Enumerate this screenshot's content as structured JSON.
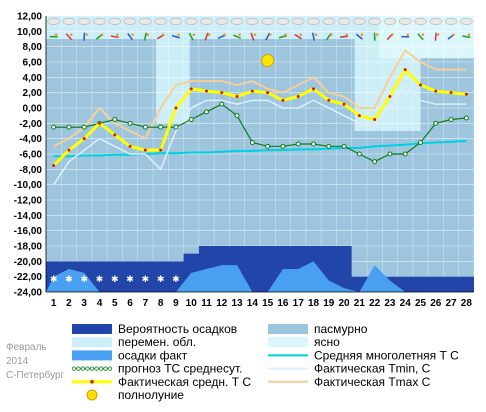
{
  "chart_data": {
    "type": "line",
    "x": [
      1,
      2,
      3,
      4,
      5,
      6,
      7,
      8,
      9,
      10,
      11,
      12,
      13,
      14,
      15,
      16,
      17,
      18,
      19,
      20,
      21,
      22,
      23,
      24,
      25,
      26,
      27,
      28
    ],
    "ylim": [
      -24,
      12
    ],
    "yticks": [
      "12,00",
      "10,00",
      "8,00",
      "6,00",
      "4,00",
      "2,00",
      "0,00",
      "-2,00",
      "-4,00",
      "-6,00",
      "-8,00",
      "-10,00",
      "-12,00",
      "-14,00",
      "-16,00",
      "-18,00",
      "-20,00",
      "-22,00",
      "-24,00"
    ],
    "ytick_values": [
      12,
      10,
      8,
      6,
      4,
      2,
      0,
      -2,
      -4,
      -6,
      -8,
      -10,
      -12,
      -14,
      -16,
      -18,
      -20,
      -22,
      -24
    ],
    "xticks": [
      "1",
      "2",
      "3",
      "4",
      "5",
      "6",
      "7",
      "8",
      "9",
      "10",
      "11",
      "12",
      "13",
      "14",
      "15",
      "16",
      "17",
      "18",
      "19",
      "20",
      "21",
      "22",
      "23",
      "24",
      "25",
      "26",
      "27",
      "28"
    ],
    "series": [
      {
        "name": "Фактическая средн. Т С",
        "key": "actual_mean",
        "color": "#ffff00",
        "values": [
          -7.5,
          -5.5,
          -4,
          -2,
          -3.5,
          -5,
          -5.5,
          -5.5,
          0,
          2.5,
          2.2,
          2.0,
          1.5,
          2.2,
          2.0,
          1.0,
          1.5,
          2.5,
          1.0,
          0.5,
          -1.0,
          -1.5,
          1.5,
          5.0,
          3.0,
          2.2,
          2.0,
          1.8
        ]
      },
      {
        "name": "Фактическая Tmin, С",
        "key": "tmin",
        "color": "#ddeeff",
        "values": [
          -10,
          -7,
          -5.5,
          -4,
          -5,
          -6,
          -6,
          -8,
          -3,
          0,
          1,
          1,
          0.5,
          1,
          1,
          0,
          0,
          1,
          0,
          -1,
          -2,
          -2,
          0,
          3,
          1,
          0.5,
          0.5,
          0.5
        ]
      },
      {
        "name": "Фактическая Tmax С",
        "key": "tmax",
        "color": "#f5cf9a",
        "values": [
          -5,
          -4,
          -2.5,
          0,
          -2,
          -3,
          -4,
          0,
          3,
          3.5,
          3.5,
          3.5,
          3,
          3.5,
          2.5,
          2,
          3,
          4,
          2,
          1.5,
          0,
          0,
          4,
          7.5,
          6,
          5,
          5,
          5
        ]
      },
      {
        "name": "прогноз ТС среднесут.",
        "key": "forecast",
        "color": "#0a7d1a",
        "values": [
          -2.5,
          -2.5,
          -2.5,
          -2,
          -1.5,
          -2,
          -2.5,
          -2.5,
          -2.5,
          -1.5,
          -0.5,
          0.5,
          -1,
          -4.5,
          -5,
          -5,
          -4.7,
          -4.7,
          -5,
          -5,
          -6,
          -7,
          -6,
          -6,
          -4.5,
          -2,
          -1.5,
          -1.3
        ]
      },
      {
        "name": "Средняя многолетняя Т С",
        "key": "normal",
        "color": "#00d0e0",
        "values": [
          -6.3,
          -6.3,
          -6.2,
          -6.2,
          -6.1,
          -6.1,
          -6.0,
          -5.9,
          -5.9,
          -5.8,
          -5.8,
          -5.7,
          -5.6,
          -5.6,
          -5.5,
          -5.5,
          -5.4,
          -5.4,
          -5.3,
          -5.2,
          -5.2,
          -5.0,
          -4.9,
          -4.8,
          -4.6,
          -4.5,
          -4.4,
          -4.3
        ]
      }
    ],
    "precip_probability_level": [
      -20,
      -20,
      -20,
      -20,
      -20,
      -20,
      -20,
      -20,
      -20,
      -19,
      -18,
      -18,
      -18,
      -18,
      -18,
      -18,
      -18,
      -18,
      -18,
      -18,
      -22,
      -22,
      -22,
      -22,
      -22,
      -22,
      -22,
      -22
    ],
    "precip_actual_level": [
      -22,
      -21,
      -21.5,
      -24,
      -24,
      -24,
      -24,
      -24,
      -24,
      -21.5,
      -21,
      -20.5,
      -20.5,
      -24,
      -24,
      -21,
      -21,
      -20,
      -22.5,
      -23.5,
      -24,
      -20.5,
      -22.5,
      -24,
      -24,
      -24,
      -24,
      -24
    ],
    "overcast_days_band": {
      "top": 12,
      "bottom": -24
    },
    "full_moon_day": 15,
    "colors": {
      "overcast": "#9dc6de",
      "variable_cloud": "#cdeef7",
      "clear": "#dcf7fb",
      "precip_probability": "#2145a8",
      "precip_actual": "#4aa0f0",
      "grid": "#ffffff"
    },
    "legend": [
      {
        "label": "Вероятность осадков",
        "swatch": "block",
        "color": "#2145a8"
      },
      {
        "label": "перемен. обл.",
        "swatch": "block",
        "color": "#cdeef7"
      },
      {
        "label": "осадки факт",
        "swatch": "block",
        "color": "#4aa0f0"
      },
      {
        "label": "прогноз ТС среднесут.",
        "swatch": "dots",
        "color": "#0a7d1a"
      },
      {
        "label": "Фактическая средн. Т С",
        "swatch": "yellowline",
        "color": "#ffff00"
      },
      {
        "label": "полнолуние",
        "swatch": "moon",
        "color": "#ffe000"
      },
      {
        "label": "пасмурно",
        "swatch": "block",
        "color": "#9dc6de"
      },
      {
        "label": "ясно",
        "swatch": "block",
        "color": "#dcf7fb"
      },
      {
        "label": "Средняя многолетняя Т С",
        "swatch": "line",
        "color": "#00d0e0"
      },
      {
        "label": "Фактическая Tmin, С",
        "swatch": "line",
        "color": "#ddeeff"
      },
      {
        "label": "Фактическая Tmax С",
        "swatch": "line",
        "color": "#f5cf9a"
      }
    ],
    "meta": [
      "Февраль",
      "2014",
      "С-Петербург"
    ]
  }
}
